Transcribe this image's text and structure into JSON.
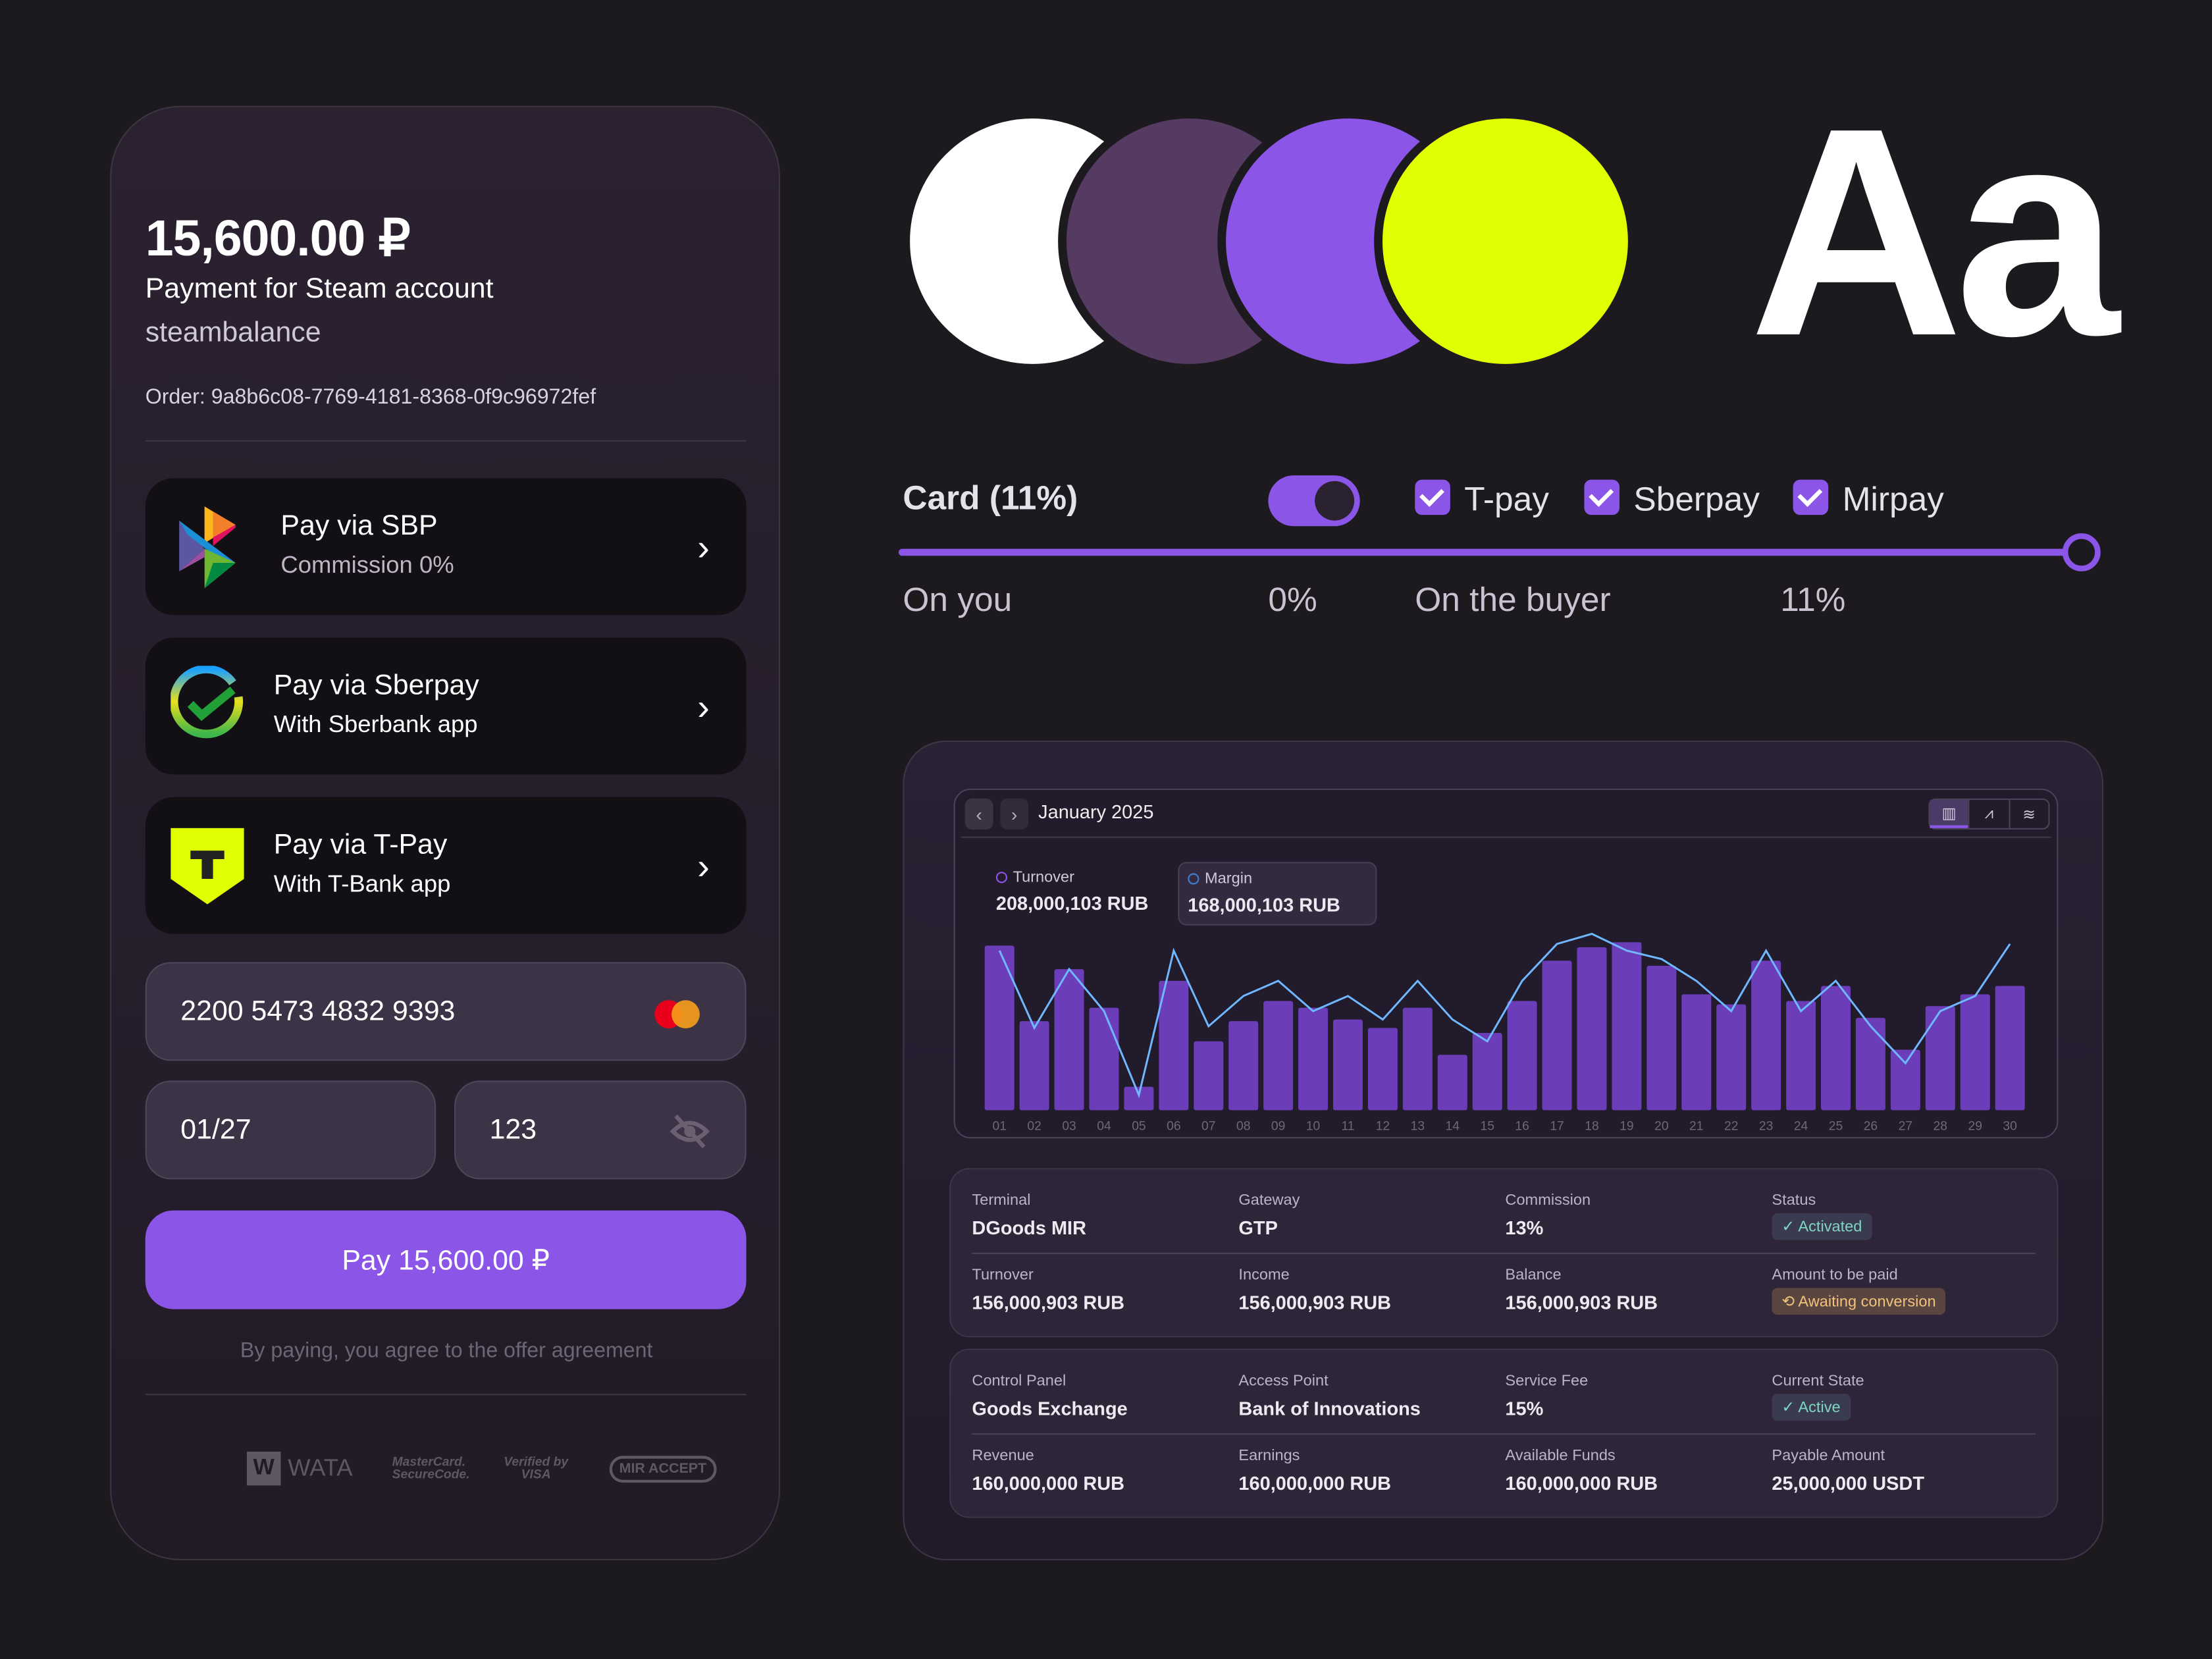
{
  "payment": {
    "amount": "15,600.00 ₽",
    "description": "Payment for Steam account",
    "merchant": "steambalance",
    "order": "Order: 9a8b6c08-7769-4181-8368-0f9c96972fef",
    "methods": [
      {
        "title": "Pay via SBP",
        "subtitle": "Commission 0%"
      },
      {
        "title": "Pay via Sberpay",
        "subtitle": "With Sberbank app"
      },
      {
        "title": "Pay via T-Pay",
        "subtitle": "With T-Bank app"
      }
    ],
    "card_number": "2200 5473 4832 9393",
    "expiry": "01/27",
    "cvv": "123",
    "pay_button": "Pay 15,600.00 ₽",
    "agreement": "By paying, you agree to the offer agreement",
    "logos": [
      "WATA",
      "MasterCard. SecureCode.",
      "Verified by VISA",
      "MIR ACCEPT"
    ]
  },
  "palette": {
    "white": "#ffffff",
    "plum": "#553a62",
    "purple": "#8b55e8",
    "lime": "#e0ff00"
  },
  "typography": {
    "sample": "Aa"
  },
  "commission": {
    "card_label": "Card (11%)",
    "toggle_on": true,
    "options": [
      {
        "label": "T-pay",
        "checked": true
      },
      {
        "label": "Sberpay",
        "checked": true
      },
      {
        "label": "Mirpay",
        "checked": true
      }
    ],
    "slider_value_percent": 100,
    "on_you_label": "On you",
    "on_you_value": "0%",
    "on_buyer_label": "On the buyer",
    "on_buyer_value": "11%"
  },
  "dashboard": {
    "month": "January 2025",
    "turnover_label": "Turnover",
    "turnover_value": "208,000,103 RUB",
    "margin_label": "Margin",
    "margin_value": "168,000,103 RUB",
    "table1": [
      [
        {
          "k": "Terminal",
          "v": "DGoods MIR"
        },
        {
          "k": "Gateway",
          "v": "GTP"
        },
        {
          "k": "Commission",
          "v": "13%"
        },
        {
          "k": "Status",
          "badge": "✓ Activated",
          "tone": "green"
        }
      ],
      [
        {
          "k": "Turnover",
          "v": "156,000,903 RUB"
        },
        {
          "k": "Income",
          "v": "156,000,903 RUB"
        },
        {
          "k": "Balance",
          "v": "156,000,903 RUB"
        },
        {
          "k": "Amount to be paid",
          "badge": "⟲ Awaiting conversion",
          "tone": "orange"
        }
      ]
    ],
    "table2": [
      [
        {
          "k": "Control Panel",
          "v": "Goods Exchange"
        },
        {
          "k": "Access Point",
          "v": "Bank of Innovations"
        },
        {
          "k": "Service Fee",
          "v": "15%"
        },
        {
          "k": "Current State",
          "badge": "✓ Active",
          "tone": "green"
        }
      ],
      [
        {
          "k": "Revenue",
          "v": "160,000,000 RUB"
        },
        {
          "k": "Earnings",
          "v": "160,000,000 RUB"
        },
        {
          "k": "Available Funds",
          "v": "160,000,000 RUB"
        },
        {
          "k": "Payable Amount",
          "v": "25,000,000 USDT"
        }
      ]
    ]
  },
  "chart_data": {
    "type": "bar",
    "title": "January 2025",
    "categories": [
      "01",
      "02",
      "03",
      "04",
      "05",
      "06",
      "07",
      "08",
      "09",
      "10",
      "11",
      "12",
      "13",
      "14",
      "15",
      "16",
      "17",
      "18",
      "19",
      "20",
      "21",
      "22",
      "23",
      "24",
      "25",
      "26",
      "27",
      "28",
      "29",
      "30"
    ],
    "series": [
      {
        "name": "Turnover",
        "type": "bar",
        "color": "#6b3db8",
        "values": [
          98,
          53,
          84,
          61,
          14,
          77,
          41,
          53,
          65,
          61,
          54,
          49,
          61,
          33,
          46,
          65,
          89,
          97,
          100,
          86,
          69,
          63,
          89,
          65,
          74,
          55,
          36,
          62,
          69,
          74
        ]
      },
      {
        "name": "Margin",
        "type": "line",
        "color": "#6fb8ff",
        "values": [
          95,
          49,
          84,
          59,
          9,
          95,
          50,
          68,
          77,
          59,
          68,
          54,
          77,
          54,
          41,
          77,
          99,
          105,
          95,
          90,
          77,
          59,
          95,
          59,
          77,
          50,
          28,
          59,
          68,
          99
        ]
      }
    ],
    "ylim": [
      0,
      110
    ],
    "grid": false,
    "legend": "top-left"
  }
}
